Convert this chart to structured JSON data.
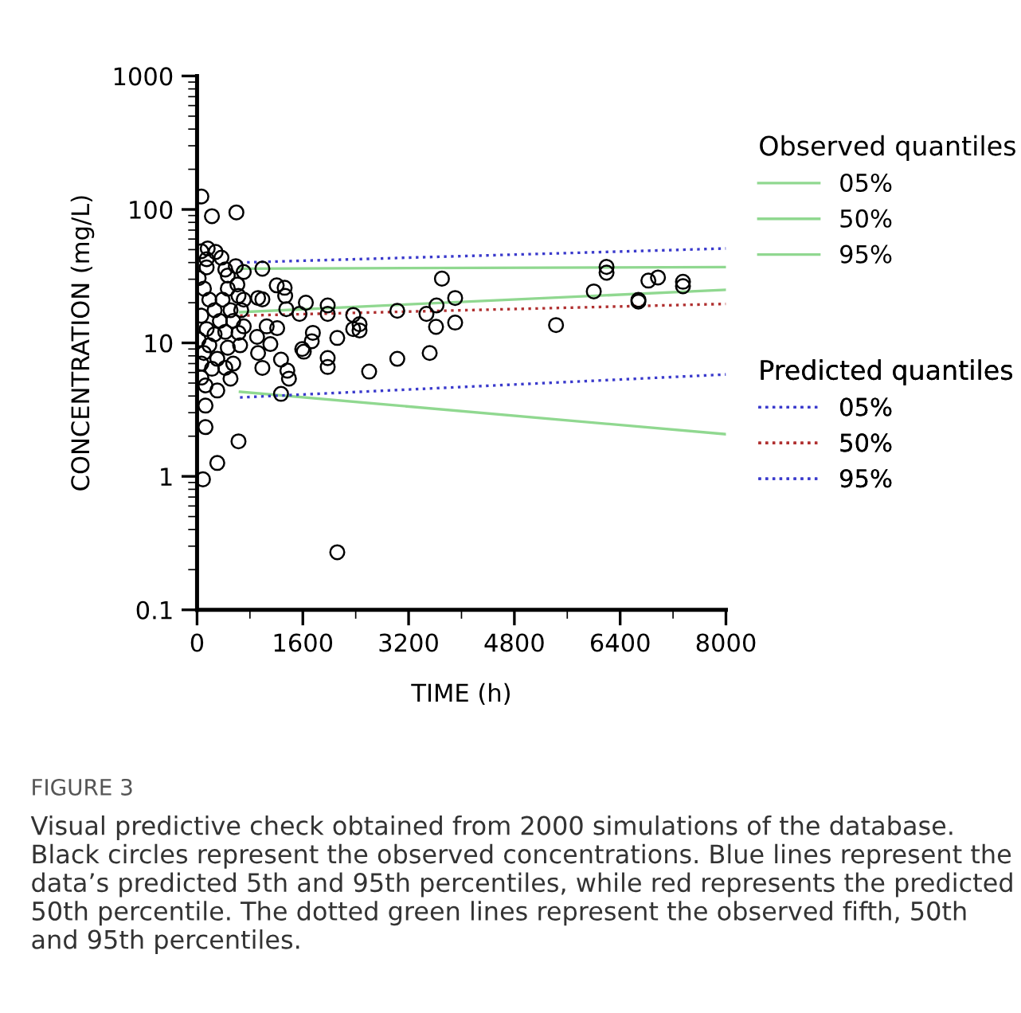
{
  "chart_data": {
    "type": "scatter",
    "xlabel": "TIME (h)",
    "ylabel": "CONCENTRATION (mg/L)",
    "legend_title": [
      "Observed quantiles",
      "Predicted quantiles"
    ],
    "legend": "right",
    "log": "y",
    "grid": false,
    "xlim": [
      0,
      8000
    ],
    "xticks": [
      0,
      1600,
      3200,
      4800,
      6400,
      8000
    ],
    "ylim": [
      0.1,
      1000
    ],
    "yticks": [
      0.1,
      1,
      10,
      100,
      1000
    ],
    "annotations": [
      "FIGURE 3",
      "Visual predictive check obtained from 2000 simulations of the database. Black circles represent the observed concentrations. Blue lines represent the data’s predicted 5th and 95th percentiles, while red represents the predicted 50th percentile. The dotted green lines represent the observed fifth, 50th and 95th percentiles."
    ],
    "series": [
      {
        "color": "#000000",
        "marker": "circle",
        "x": [
          1976,
          1976,
          2362,
          2362,
          2458,
          2458,
          2121,
          1976,
          1976,
          2603,
          3029,
          3029,
          3470,
          3622,
          3704,
          3904,
          3615,
          3904,
          3519,
          5430,
          6001,
          6194,
          6194,
          6676,
          6676,
          6827,
          6972,
          7350,
          7350,
          2121,
          65,
          225,
          595,
          161,
          281,
          369,
          988,
          706,
          1205,
          1325,
          1333,
          1646,
          923,
          988,
          627,
          1350,
          1550,
          1212,
          1053,
          1752,
          1735,
          1591,
          1615,
          1109,
          908,
          923,
          1270,
          1366,
          1390,
          988,
          1270,
          627,
          306,
          89,
          128,
          128,
          128,
          306,
          506,
          547,
          427,
          465,
          651,
          627,
          706,
          547,
          668,
          706,
          610,
          465,
          586,
          145,
          427,
          24,
          104,
          185,
          265,
          65,
          345,
          145,
          265,
          24,
          185,
          104,
          306,
          65,
          225,
          65,
          386,
          465,
          145,
          65,
          506,
          427
        ],
        "values": [
          19.1,
          16.5,
          16.2,
          12.7,
          13.8,
          12.4,
          10.9,
          7.7,
          6.6,
          6.1,
          17.4,
          7.6,
          16.5,
          19.1,
          30.3,
          21.7,
          13.2,
          14.2,
          8.4,
          13.6,
          24.3,
          37.1,
          33.6,
          21.0,
          20.4,
          29.3,
          30.9,
          28.7,
          26.6,
          0.27,
          125,
          89,
          95,
          51,
          48,
          43.5,
          36,
          34,
          27,
          25.9,
          22.5,
          20,
          21.7,
          21.2,
          22.5,
          17.9,
          16.5,
          12.9,
          13.3,
          11.9,
          10.3,
          9.0,
          8.6,
          9.8,
          11.1,
          8.4,
          7.5,
          6.2,
          5.4,
          6.5,
          4.15,
          1.83,
          1.26,
          0.95,
          2.34,
          3.39,
          4.8,
          4.4,
          5.4,
          7.0,
          6.5,
          9.2,
          9.6,
          11.9,
          13.3,
          14.6,
          17.6,
          21.1,
          27.4,
          32,
          37.6,
          36.8,
          35.5,
          30.6,
          25.5,
          21.1,
          17.6,
          16,
          14.6,
          12.7,
          11.6,
          10.6,
          9.6,
          8.4,
          7.6,
          7.0,
          6.4,
          5.5,
          21.1,
          25.5,
          42.4,
          48.6,
          17.6,
          12.1
        ]
      },
      {
        "type": "line",
        "name": "05%",
        "color": "#90d890",
        "line_style": "solid",
        "x": [
          650,
          8000
        ],
        "values": [
          4.3,
          2.07
        ]
      },
      {
        "type": "line",
        "name": "50%",
        "color": "#90d890",
        "line_style": "solid",
        "x": [
          650,
          8000
        ],
        "values": [
          17,
          25
        ]
      },
      {
        "type": "line",
        "name": "95%",
        "color": "#90d890",
        "line_style": "solid",
        "x": [
          650,
          8000
        ],
        "values": [
          36,
          37
        ]
      },
      {
        "type": "line",
        "name": "05%",
        "color": "#3a3acc",
        "line_style": "dotted",
        "x": [
          650,
          8000
        ],
        "values": [
          3.9,
          5.8
        ]
      },
      {
        "type": "line",
        "name": "50%",
        "color": "#b03030",
        "line_style": "dotted",
        "x": [
          650,
          8000
        ],
        "values": [
          16,
          19.6
        ]
      },
      {
        "type": "line",
        "name": "95%",
        "color": "#3a3acc",
        "line_style": "dotted",
        "x": [
          650,
          8000
        ],
        "values": [
          40,
          51
        ]
      }
    ]
  }
}
